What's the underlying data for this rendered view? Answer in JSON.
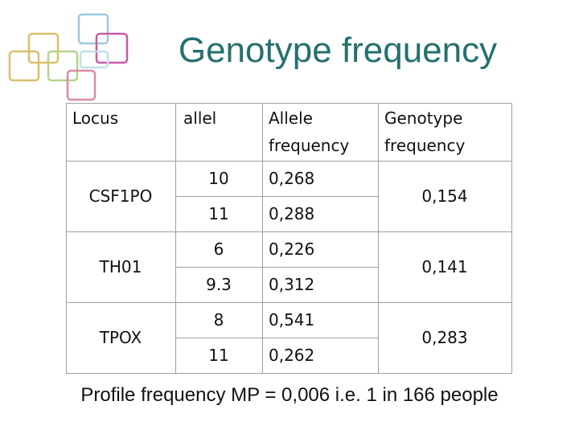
{
  "title": "Genotype frequency",
  "table": {
    "headers": [
      "Locus",
      "allel",
      "Allele frequency",
      "Genotype frequency"
    ],
    "rows": [
      {
        "locus": "CSF1PO",
        "alleles": [
          {
            "allel": "10",
            "frequency": "0,268"
          },
          {
            "allel": "11",
            "frequency": "0,288"
          }
        ],
        "genotype_frequency": "0,154"
      },
      {
        "locus": "TH01",
        "alleles": [
          {
            "allel": "6",
            "frequency": "0,226"
          },
          {
            "allel": "9.3",
            "frequency": "0,312"
          }
        ],
        "genotype_frequency": "0,141"
      },
      {
        "locus": "TPOX",
        "alleles": [
          {
            "allel": "8",
            "frequency": "0,541"
          },
          {
            "allel": "11",
            "frequency": "0,262"
          }
        ],
        "genotype_frequency": "0,283"
      }
    ]
  },
  "footer": "Profile frequency MP = 0,006 i.e. 1 in 166 people"
}
